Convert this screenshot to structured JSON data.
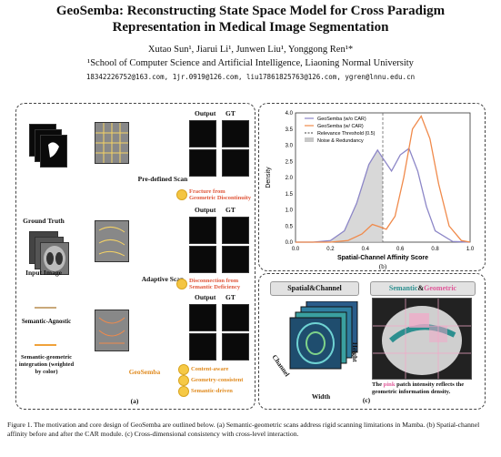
{
  "paper": {
    "title_line1": "GeoSemba: Reconstructing State Space Model for Cross Paradigm",
    "title_line2": "Representation in Medical Image Segmentation",
    "authors": "Xutao Sun¹, Jiarui Li¹, Junwen Liu¹, Yonggong Ren¹*",
    "affiliation": "¹School of Computer Science and Artificial Intelligence, Liaoning Normal University",
    "emails": "18342226752@163.com, 1jr.0919@126.com, liu17861825763@126.com, ygren@lnnu.edu.cn"
  },
  "figure_a": {
    "label": "(a)",
    "ground_truth": "Ground Truth",
    "input_image": "Input Image",
    "output_header": "Output",
    "gt_header": "GT",
    "row1_method": "Pre-defined Scan",
    "row1_note": "Fracture from Geometric Discontinuity",
    "row2_method": "Adaptive Scan",
    "row2_note": "Disconnection from Semantic Deficiency",
    "row3_method": "GeoSemba",
    "legend_agnostic": "Semantic-Agnostic",
    "legend_integration": "Semantic-geometric integration (weighted by color)",
    "merits": [
      "Content-aware",
      "Geometry-consistent",
      "Semantic-driven"
    ],
    "colors": {
      "merit": "#e08a1e",
      "note": "#e0583c",
      "arrow_orange": "#f0a23a"
    }
  },
  "figure_b": {
    "label": "(b)",
    "xlabel": "Spatial-Channel Affinity Score",
    "ylabel": "Density",
    "legend": [
      "GeoSemba (w/o CAR)",
      "GeoSemba (w/ CAR)",
      "Relevance Threshold (0.5)",
      "Noise & Redundancy"
    ],
    "colors": {
      "wo": "#8c86c7",
      "w": "#f08a4b",
      "noise": "#c8c8c8"
    }
  },
  "figure_c": {
    "label": "(c)",
    "spatial_title": "Spatial&Channel",
    "semantic_word": "Semantic",
    "amp": "&",
    "geometric_word": "Geometric",
    "height": "Height",
    "width": "Width",
    "channel": "Channel",
    "desc_pre": "The",
    "desc_pink": "pink",
    "desc_post": "patch intensity reflects the geometric information density."
  },
  "chart_data": {
    "type": "line",
    "title": "",
    "xlabel": "Spatial-Channel Affinity Score",
    "ylabel": "Density",
    "xlim": [
      0.0,
      1.0
    ],
    "ylim": [
      0.0,
      4.0
    ],
    "xticks": [
      0.0,
      0.2,
      0.4,
      0.6,
      0.8,
      1.0
    ],
    "yticks": [
      0.0,
      0.5,
      1.0,
      1.5,
      2.0,
      2.5,
      3.0,
      3.5,
      4.0
    ],
    "threshold": 0.5,
    "legend_position": "top-left",
    "series": [
      {
        "name": "GeoSemba (w/o CAR)",
        "x": [
          0.0,
          0.1,
          0.2,
          0.28,
          0.35,
          0.42,
          0.47,
          0.5,
          0.55,
          0.6,
          0.65,
          0.7,
          0.75,
          0.8,
          0.9,
          1.0
        ],
        "y": [
          0.0,
          0.0,
          0.05,
          0.35,
          1.2,
          2.4,
          2.85,
          2.6,
          2.2,
          2.7,
          2.9,
          2.2,
          1.1,
          0.35,
          0.02,
          0.0
        ]
      },
      {
        "name": "GeoSemba (w/ CAR)",
        "x": [
          0.0,
          0.1,
          0.2,
          0.3,
          0.38,
          0.44,
          0.48,
          0.52,
          0.57,
          0.62,
          0.67,
          0.72,
          0.77,
          0.82,
          0.88,
          0.95,
          1.0
        ],
        "y": [
          0.0,
          0.0,
          0.0,
          0.05,
          0.25,
          0.55,
          0.48,
          0.4,
          0.8,
          2.0,
          3.5,
          3.9,
          3.2,
          1.8,
          0.5,
          0.05,
          0.0
        ]
      }
    ]
  },
  "caption": "Figure 1. The motivation and core design of GeoSemba are outlined below. (a) Semantic-geometric scans address rigid scanning limitations in Mamba. (b) Spatial-channel affinity before and after the CAR module. (c) Cross-dimensional consistency with cross-level interaction."
}
